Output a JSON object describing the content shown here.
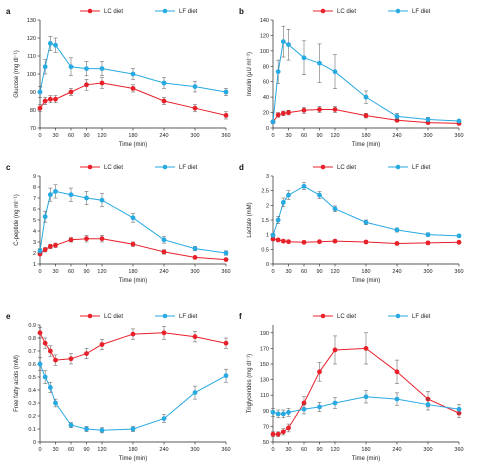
{
  "colors": {
    "lc": "#e8202a",
    "lf": "#27a9e1",
    "axis": "#222222"
  },
  "chart_data": [
    {
      "type": "line",
      "panel": "a",
      "xlabel": "Time (min)",
      "ylabel": "Glucose (mg dl⁻¹)",
      "xlim": [
        0,
        360
      ],
      "ylim": [
        70,
        130
      ],
      "xticks": [
        0,
        30,
        60,
        90,
        120,
        180,
        240,
        300,
        360
      ],
      "yticks": [
        70,
        80,
        90,
        100,
        110,
        120,
        130
      ],
      "grid": false,
      "legend": "top",
      "series": [
        {
          "name": "LC diet",
          "color": "#e8202a",
          "x": [
            0,
            10,
            20,
            30,
            60,
            90,
            120,
            180,
            240,
            300,
            360
          ],
          "y": [
            81,
            85,
            86,
            86,
            90,
            94,
            95,
            92,
            85,
            81,
            77
          ],
          "err": [
            2,
            2,
            2,
            2,
            2,
            3,
            3,
            2,
            2,
            2,
            2
          ]
        },
        {
          "name": "LF diet",
          "color": "#27a9e1",
          "x": [
            0,
            10,
            20,
            30,
            60,
            90,
            120,
            180,
            240,
            300,
            360
          ],
          "y": [
            90,
            104,
            117,
            116,
            104,
            103,
            103,
            100,
            95,
            93,
            90
          ],
          "err": [
            3,
            4,
            4,
            4,
            5,
            4,
            4,
            3,
            3,
            3,
            2
          ]
        }
      ]
    },
    {
      "type": "line",
      "panel": "b",
      "xlabel": "Time (min)",
      "ylabel": "Insulin (μU ml⁻¹)",
      "xlim": [
        0,
        360
      ],
      "ylim": [
        0,
        140
      ],
      "xticks": [
        0,
        30,
        60,
        90,
        120,
        180,
        240,
        300,
        360
      ],
      "yticks": [
        0,
        20,
        40,
        60,
        80,
        100,
        120,
        140
      ],
      "grid": false,
      "legend": "top",
      "series": [
        {
          "name": "LC diet",
          "color": "#e8202a",
          "x": [
            0,
            10,
            20,
            30,
            60,
            90,
            120,
            180,
            240,
            300,
            360
          ],
          "y": [
            8,
            17,
            19,
            20,
            23,
            24,
            24,
            16,
            10,
            7,
            6
          ],
          "err": [
            2,
            3,
            3,
            3,
            4,
            4,
            4,
            3,
            2,
            2,
            1
          ]
        },
        {
          "name": "LF diet",
          "color": "#27a9e1",
          "x": [
            0,
            10,
            20,
            30,
            60,
            90,
            120,
            180,
            240,
            300,
            360
          ],
          "y": [
            8,
            73,
            112,
            108,
            91,
            84,
            73,
            40,
            15,
            11,
            9
          ],
          "err": [
            2,
            15,
            20,
            20,
            22,
            25,
            22,
            8,
            4,
            3,
            2
          ]
        }
      ]
    },
    {
      "type": "line",
      "panel": "c",
      "xlabel": "Time (min)",
      "ylabel": "C-peptide (ng ml⁻¹)",
      "xlim": [
        0,
        360
      ],
      "ylim": [
        1,
        9
      ],
      "xticks": [
        0,
        30,
        60,
        90,
        120,
        180,
        240,
        300,
        360
      ],
      "yticks": [
        1,
        2,
        3,
        4,
        5,
        6,
        7,
        8,
        9
      ],
      "grid": false,
      "legend": "top",
      "series": [
        {
          "name": "LC diet",
          "color": "#e8202a",
          "x": [
            0,
            10,
            20,
            30,
            60,
            90,
            120,
            180,
            240,
            300,
            360
          ],
          "y": [
            1.9,
            2.3,
            2.6,
            2.7,
            3.2,
            3.3,
            3.3,
            2.8,
            2.1,
            1.6,
            1.4
          ],
          "err": [
            0.1,
            0.2,
            0.2,
            0.2,
            0.2,
            0.3,
            0.3,
            0.2,
            0.2,
            0.1,
            0.1
          ]
        },
        {
          "name": "LF diet",
          "color": "#27a9e1",
          "x": [
            0,
            10,
            20,
            30,
            60,
            90,
            120,
            180,
            240,
            300,
            360
          ],
          "y": [
            2.2,
            5.3,
            7.3,
            7.6,
            7.3,
            7.0,
            6.8,
            5.2,
            3.2,
            2.4,
            2.0
          ],
          "err": [
            0.2,
            0.5,
            0.6,
            0.6,
            0.6,
            0.6,
            0.6,
            0.4,
            0.3,
            0.2,
            0.2
          ]
        }
      ]
    },
    {
      "type": "line",
      "panel": "d",
      "xlabel": "Time (min)",
      "ylabel": "Lactate (mM)",
      "xlim": [
        0,
        360
      ],
      "ylim": [
        0,
        3
      ],
      "xticks": [
        0,
        30,
        60,
        90,
        120,
        180,
        240,
        300,
        360
      ],
      "yticks": [
        0,
        0.5,
        1,
        1.5,
        2,
        2.5,
        3
      ],
      "grid": false,
      "legend": "top",
      "series": [
        {
          "name": "LC diet",
          "color": "#e8202a",
          "x": [
            0,
            10,
            20,
            30,
            60,
            90,
            120,
            180,
            240,
            300,
            360
          ],
          "y": [
            0.85,
            0.82,
            0.78,
            0.76,
            0.74,
            0.76,
            0.78,
            0.75,
            0.7,
            0.72,
            0.74
          ],
          "err": [
            0.05,
            0.05,
            0.05,
            0.05,
            0.05,
            0.05,
            0.05,
            0.05,
            0.05,
            0.05,
            0.05
          ]
        },
        {
          "name": "LF diet",
          "color": "#27a9e1",
          "x": [
            0,
            10,
            20,
            30,
            60,
            90,
            120,
            180,
            240,
            300,
            360
          ],
          "y": [
            0.98,
            1.5,
            2.1,
            2.35,
            2.65,
            2.35,
            1.88,
            1.42,
            1.16,
            1.0,
            0.96
          ],
          "err": [
            0.06,
            0.12,
            0.15,
            0.15,
            0.12,
            0.12,
            0.1,
            0.08,
            0.07,
            0.06,
            0.05
          ]
        }
      ]
    },
    {
      "type": "line",
      "panel": "e",
      "xlabel": "Time (min)",
      "ylabel": "Free fatty acids (mM)",
      "xlim": [
        0,
        360
      ],
      "ylim": [
        0,
        0.9
      ],
      "xticks": [
        0,
        30,
        60,
        90,
        120,
        180,
        240,
        300,
        360
      ],
      "yticks": [
        0,
        0.1,
        0.2,
        0.3,
        0.4,
        0.5,
        0.6,
        0.7,
        0.8,
        0.9
      ],
      "grid": false,
      "legend": "top",
      "series": [
        {
          "name": "LC diet",
          "color": "#e8202a",
          "x": [
            0,
            10,
            20,
            30,
            60,
            90,
            120,
            180,
            240,
            300,
            360
          ],
          "y": [
            0.84,
            0.76,
            0.7,
            0.63,
            0.64,
            0.68,
            0.75,
            0.83,
            0.84,
            0.81,
            0.76
          ],
          "err": [
            0.04,
            0.04,
            0.04,
            0.04,
            0.04,
            0.04,
            0.04,
            0.04,
            0.05,
            0.04,
            0.04
          ]
        },
        {
          "name": "LF diet",
          "color": "#27a9e1",
          "x": [
            0,
            10,
            20,
            30,
            60,
            90,
            120,
            180,
            240,
            300,
            360
          ],
          "y": [
            0.6,
            0.5,
            0.42,
            0.3,
            0.13,
            0.1,
            0.09,
            0.1,
            0.18,
            0.38,
            0.51
          ],
          "err": [
            0.05,
            0.05,
            0.04,
            0.03,
            0.02,
            0.02,
            0.02,
            0.02,
            0.03,
            0.05,
            0.05
          ]
        }
      ]
    },
    {
      "type": "line",
      "panel": "f",
      "xlabel": "Time (min)",
      "ylabel": "Triglycerides (mg dl⁻¹)",
      "xlim": [
        0,
        360
      ],
      "ylim": [
        50,
        200
      ],
      "xticks": [
        0,
        30,
        60,
        90,
        120,
        180,
        240,
        300,
        360
      ],
      "yticks": [
        50,
        70,
        90,
        110,
        130,
        150,
        170,
        190
      ],
      "grid": false,
      "legend": "top",
      "series": [
        {
          "name": "LC diet",
          "color": "#e8202a",
          "x": [
            0,
            10,
            20,
            30,
            60,
            90,
            120,
            180,
            240,
            300,
            360
          ],
          "y": [
            60,
            60,
            63,
            68,
            100,
            140,
            168,
            170,
            140,
            105,
            87
          ],
          "err": [
            3,
            3,
            4,
            5,
            8,
            12,
            18,
            20,
            15,
            10,
            6
          ]
        },
        {
          "name": "LF diet",
          "color": "#27a9e1",
          "x": [
            0,
            10,
            20,
            30,
            60,
            90,
            120,
            180,
            240,
            300,
            360
          ],
          "y": [
            88,
            86,
            86,
            88,
            92,
            95,
            100,
            108,
            105,
            98,
            92
          ],
          "err": [
            5,
            5,
            5,
            5,
            6,
            6,
            7,
            8,
            8,
            7,
            6
          ]
        }
      ]
    }
  ]
}
